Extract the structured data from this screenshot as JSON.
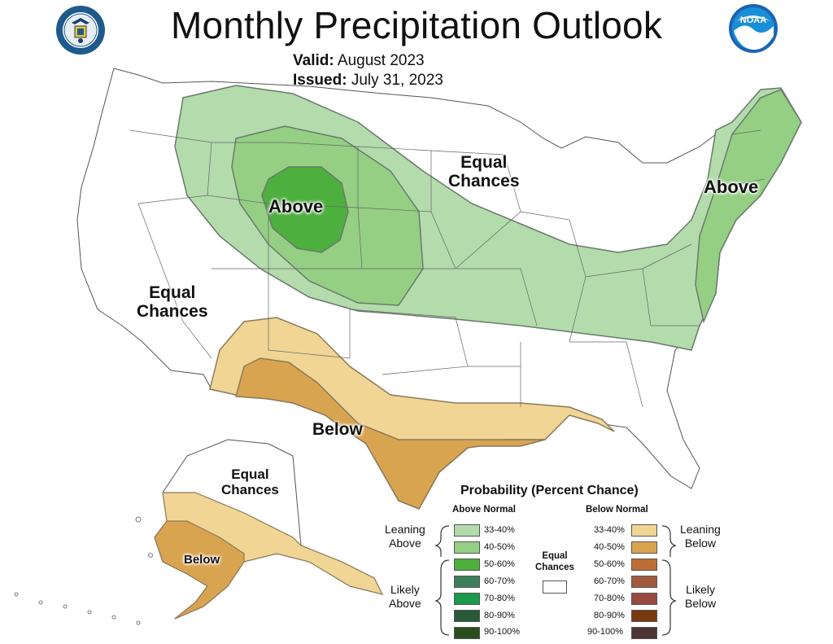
{
  "header": {
    "title": "Monthly Precipitation Outlook",
    "valid_label": "Valid:",
    "valid_value": "August 2023",
    "issued_label": "Issued:",
    "issued_value": "July 31, 2023"
  },
  "logos": {
    "left": "department-of-commerce-seal",
    "right": "noaa-logo",
    "noaa_text": "NOAA"
  },
  "map_labels": {
    "above_north": "Above",
    "above_northeast": "Above",
    "equal_north": "Equal\nChances",
    "equal_west": "Equal\nChances",
    "below_south": "Below",
    "alaska_equal": "Equal\nChances",
    "alaska_below": "Below"
  },
  "legend": {
    "title": "Probability (Percent Chance)",
    "above_header": "Above Normal",
    "below_header": "Below Normal",
    "equal_label": "Equal\nChances",
    "leaning_above": "Leaning\nAbove",
    "likely_above": "Likely\nAbove",
    "leaning_below": "Leaning\nBelow",
    "likely_below": "Likely\nBelow",
    "above_rows": [
      {
        "range": "33-40%",
        "color": "#b3dbac"
      },
      {
        "range": "40-50%",
        "color": "#94cf84"
      },
      {
        "range": "50-60%",
        "color": "#4daf3e"
      },
      {
        "range": "60-70%",
        "color": "#3b7f5a"
      },
      {
        "range": "70-80%",
        "color": "#1a9a4a"
      },
      {
        "range": "80-90%",
        "color": "#285a3a"
      },
      {
        "range": "90-100%",
        "color": "#2a4d1c"
      }
    ],
    "below_rows": [
      {
        "range": "33-40%",
        "color": "#f0d595"
      },
      {
        "range": "40-50%",
        "color": "#d9a450"
      },
      {
        "range": "50-60%",
        "color": "#bd6e35"
      },
      {
        "range": "60-70%",
        "color": "#a15a3c"
      },
      {
        "range": "70-80%",
        "color": "#984a40"
      },
      {
        "range": "80-90%",
        "color": "#7a3a10"
      },
      {
        "range": "90-100%",
        "color": "#4e3535"
      }
    ]
  }
}
